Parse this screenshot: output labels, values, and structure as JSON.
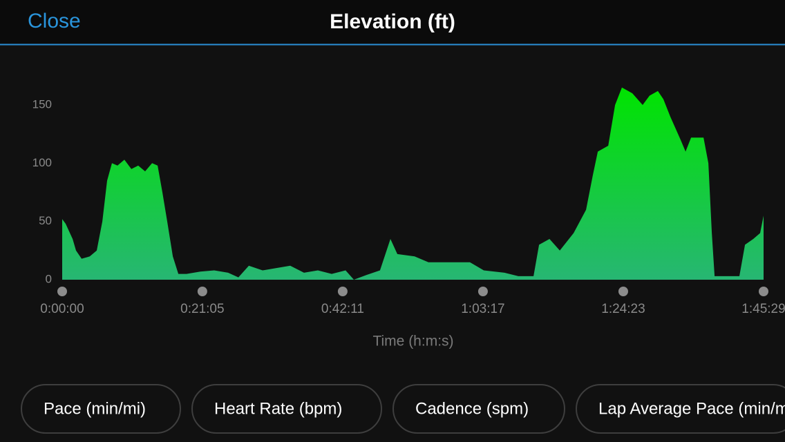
{
  "header": {
    "close": "Close",
    "title": "Elevation (ft)"
  },
  "chart_data": {
    "type": "area",
    "x_label": "Time (h:m:s)",
    "xlim": [
      0,
      6329
    ],
    "xticks": [
      {
        "value": 0,
        "label": "0:00:00"
      },
      {
        "value": 1265,
        "label": "0:21:05"
      },
      {
        "value": 2531,
        "label": "0:42:11"
      },
      {
        "value": 3797,
        "label": "1:03:17"
      },
      {
        "value": 5063,
        "label": "1:24:23"
      },
      {
        "value": 6329,
        "label": "1:45:29"
      }
    ],
    "ylim": [
      0,
      180
    ],
    "yticks": [
      0,
      50,
      100,
      150
    ],
    "colors": [
      "#00e400",
      "#27b673"
    ],
    "x": [
      0,
      31,
      94,
      125,
      175,
      249,
      312,
      362,
      405,
      449,
      499,
      561,
      624,
      686,
      748,
      811,
      861,
      904,
      948,
      998,
      1048,
      1122,
      1247,
      1372,
      1497,
      1590,
      1684,
      1808,
      1933,
      2058,
      2182,
      2307,
      2432,
      2557,
      2632,
      2744,
      2868,
      2962,
      3024,
      3180,
      3305,
      3492,
      3679,
      3804,
      3991,
      4116,
      4253,
      4303,
      4397,
      4490,
      4615,
      4727,
      4789,
      4833,
      4927,
      4989,
      5051,
      5145,
      5238,
      5300,
      5375,
      5425,
      5487,
      5581,
      5625,
      5675,
      5787,
      5831,
      5862,
      5887,
      6111,
      6161,
      6236,
      6298,
      6329
    ],
    "values": [
      52,
      48,
      35,
      25,
      18,
      20,
      25,
      50,
      85,
      100,
      98,
      103,
      95,
      98,
      93,
      100,
      98,
      75,
      50,
      20,
      5,
      5,
      7,
      8,
      6,
      2,
      12,
      8,
      10,
      12,
      6,
      8,
      5,
      8,
      0,
      4,
      8,
      35,
      22,
      20,
      15,
      15,
      15,
      8,
      6,
      3,
      3,
      30,
      35,
      25,
      40,
      60,
      90,
      110,
      115,
      150,
      165,
      160,
      150,
      158,
      162,
      155,
      140,
      120,
      110,
      122,
      122,
      100,
      40,
      3,
      3,
      30,
      35,
      40,
      55
    ]
  },
  "buttons": [
    "Pace (min/mi)",
    "Heart Rate (bpm)",
    "Cadence (spm)",
    "Lap Average Pace (min/mi)"
  ]
}
